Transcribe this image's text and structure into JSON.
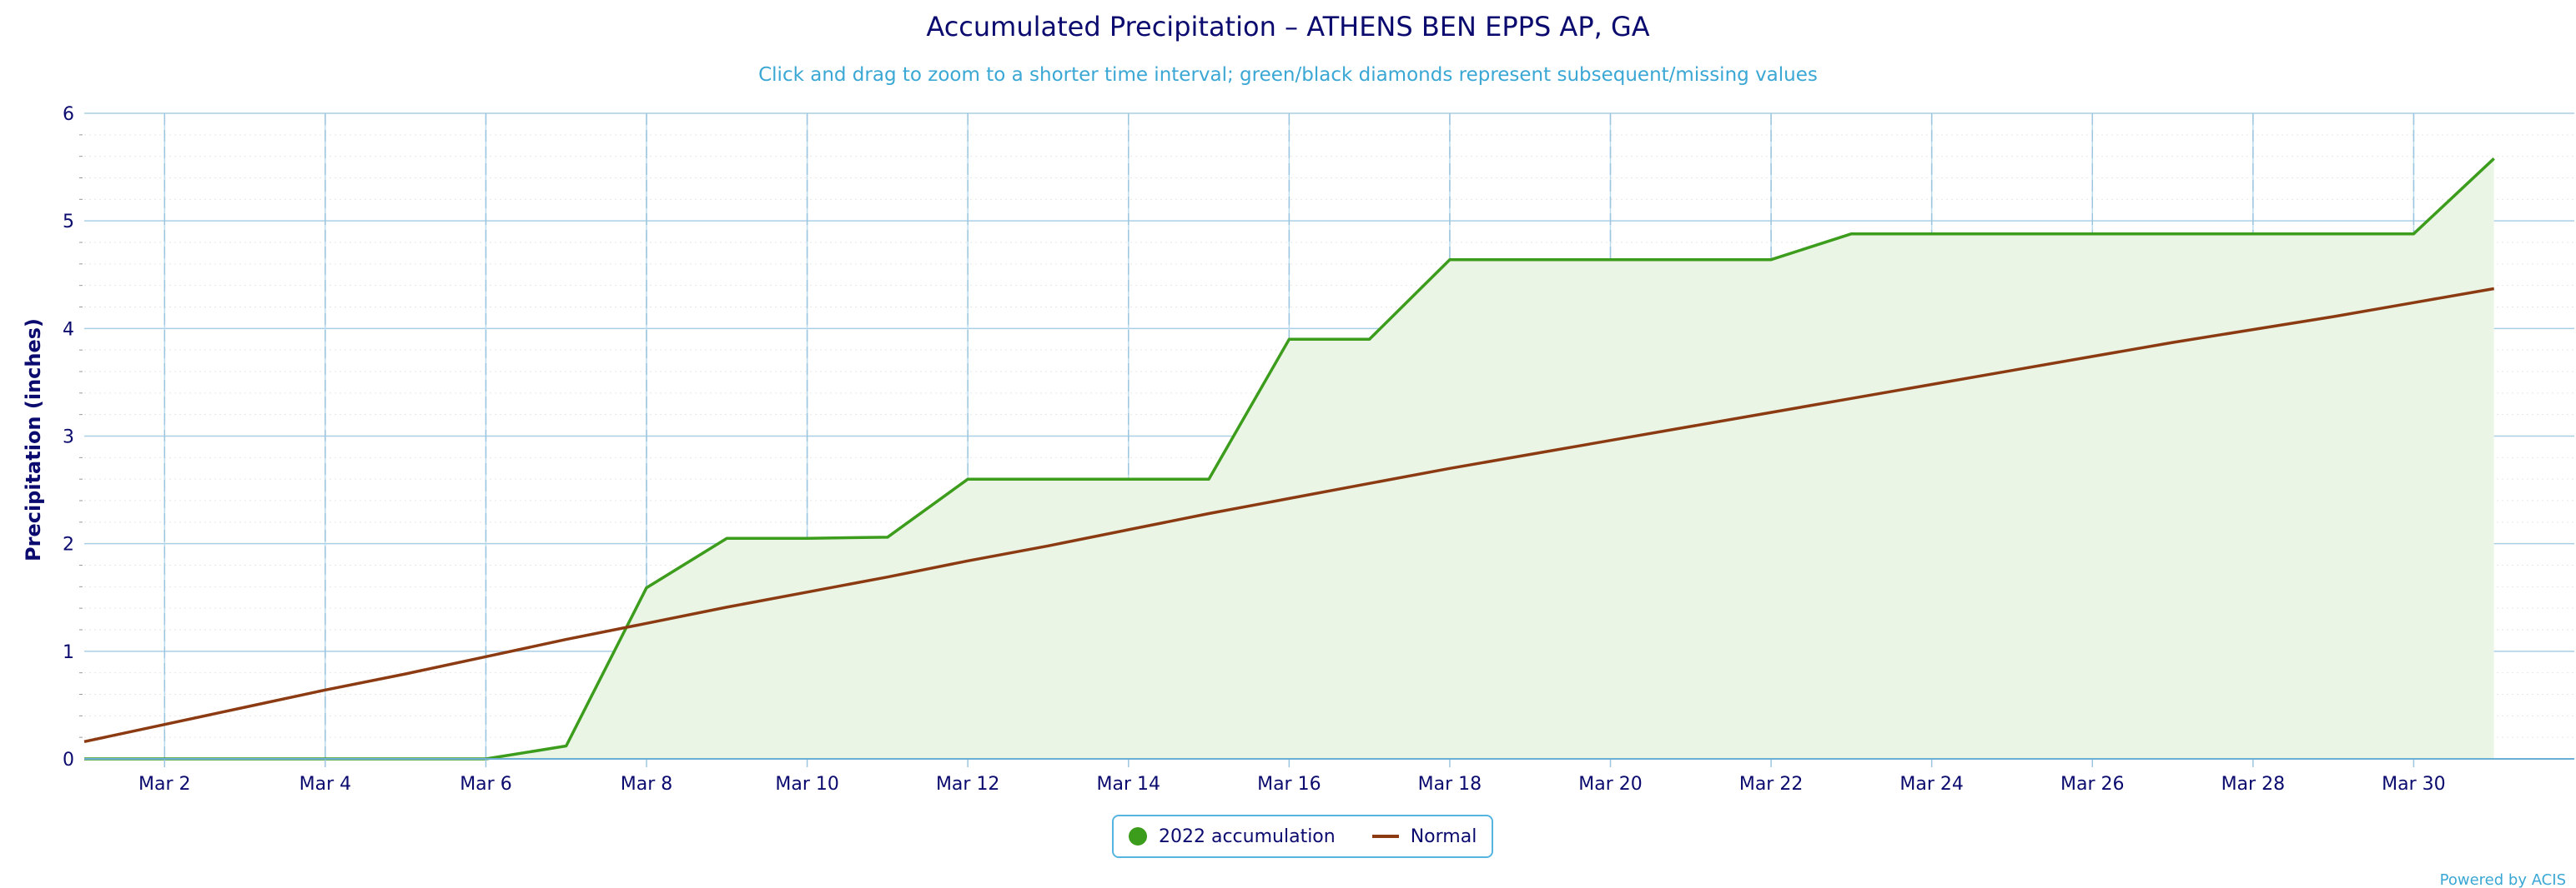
{
  "chart_data": {
    "type": "area",
    "title": "Accumulated Precipitation – ATHENS BEN EPPS AP, GA",
    "subtitle": "Click and drag to zoom to a shorter time interval; green/black diamonds represent subsequent/missing values",
    "ylabel": "Precipitation (inches)",
    "xlabel": "",
    "ylim": [
      0,
      6
    ],
    "yticks": [
      0,
      1,
      2,
      3,
      4,
      5,
      6
    ],
    "xlim": [
      1,
      32
    ],
    "xticks": [
      {
        "day": 2,
        "label": "Mar 2"
      },
      {
        "day": 4,
        "label": "Mar 4"
      },
      {
        "day": 6,
        "label": "Mar 6"
      },
      {
        "day": 8,
        "label": "Mar 8"
      },
      {
        "day": 10,
        "label": "Mar 10"
      },
      {
        "day": 12,
        "label": "Mar 12"
      },
      {
        "day": 14,
        "label": "Mar 14"
      },
      {
        "day": 16,
        "label": "Mar 16"
      },
      {
        "day": 18,
        "label": "Mar 18"
      },
      {
        "day": 20,
        "label": "Mar 20"
      },
      {
        "day": 22,
        "label": "Mar 22"
      },
      {
        "day": 24,
        "label": "Mar 24"
      },
      {
        "day": 26,
        "label": "Mar 26"
      },
      {
        "day": 28,
        "label": "Mar 28"
      },
      {
        "day": 30,
        "label": "Mar 30"
      }
    ],
    "grid": true,
    "legend_position": "bottom-center",
    "series": [
      {
        "name": "2022 accumulation",
        "kind": "area",
        "color": "#3c9c1c",
        "fill": "#ebf5e6",
        "points": [
          [
            1,
            0.0
          ],
          [
            2,
            0.0
          ],
          [
            3,
            0.0
          ],
          [
            4,
            0.0
          ],
          [
            5,
            0.0
          ],
          [
            6,
            0.0
          ],
          [
            7,
            0.12
          ],
          [
            8,
            1.59
          ],
          [
            9,
            2.05
          ],
          [
            10,
            2.05
          ],
          [
            11,
            2.06
          ],
          [
            12,
            2.6
          ],
          [
            13,
            2.6
          ],
          [
            14,
            2.6
          ],
          [
            15,
            2.6
          ],
          [
            16,
            3.9
          ],
          [
            17,
            3.9
          ],
          [
            18,
            4.64
          ],
          [
            19,
            4.64
          ],
          [
            20,
            4.64
          ],
          [
            21,
            4.64
          ],
          [
            22,
            4.64
          ],
          [
            23,
            4.88
          ],
          [
            24,
            4.88
          ],
          [
            25,
            4.88
          ],
          [
            26,
            4.88
          ],
          [
            27,
            4.88
          ],
          [
            28,
            4.88
          ],
          [
            29,
            4.88
          ],
          [
            30,
            4.88
          ],
          [
            31,
            5.58
          ]
        ]
      },
      {
        "name": "Normal",
        "kind": "line",
        "color": "#8b3a12",
        "points": [
          [
            1,
            0.16
          ],
          [
            2,
            0.32
          ],
          [
            3,
            0.48
          ],
          [
            4,
            0.64
          ],
          [
            5,
            0.79
          ],
          [
            6,
            0.95
          ],
          [
            7,
            1.11
          ],
          [
            8,
            1.26
          ],
          [
            9,
            1.41
          ],
          [
            10,
            1.55
          ],
          [
            11,
            1.69
          ],
          [
            12,
            1.84
          ],
          [
            13,
            1.98
          ],
          [
            14,
            2.13
          ],
          [
            15,
            2.28
          ],
          [
            16,
            2.42
          ],
          [
            17,
            2.56
          ],
          [
            18,
            2.7
          ],
          [
            19,
            2.83
          ],
          [
            20,
            2.96
          ],
          [
            21,
            3.09
          ],
          [
            22,
            3.22
          ],
          [
            23,
            3.35
          ],
          [
            24,
            3.48
          ],
          [
            25,
            3.61
          ],
          [
            26,
            3.74
          ],
          [
            27,
            3.87
          ],
          [
            28,
            3.99
          ],
          [
            29,
            4.11
          ],
          [
            30,
            4.24
          ],
          [
            31,
            4.37
          ]
        ]
      }
    ]
  },
  "legend": {
    "items": [
      "2022 accumulation",
      "Normal"
    ]
  },
  "credit": "Powered by ACIS"
}
